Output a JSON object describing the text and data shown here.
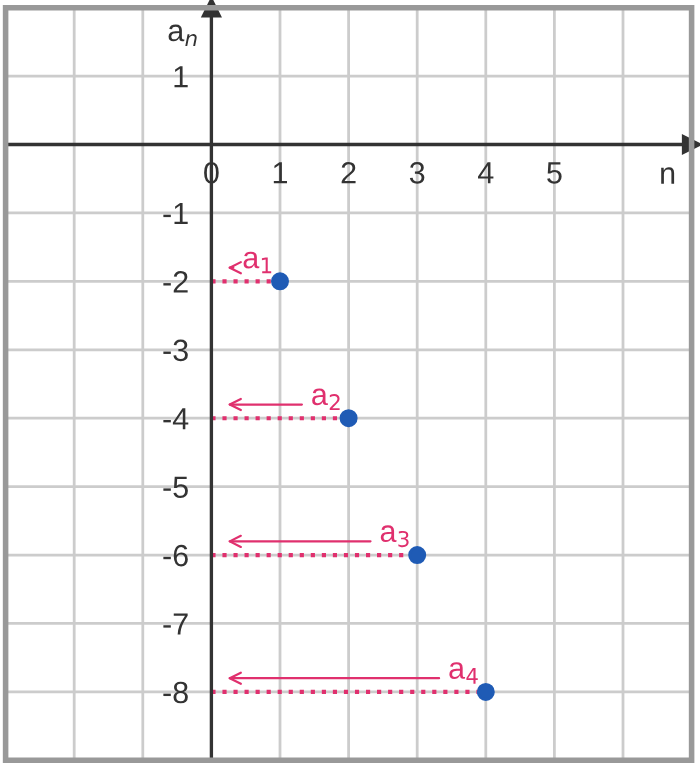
{
  "chart_data": {
    "type": "scatter",
    "xlabel": "n",
    "ylabel": "a$_{n}$",
    "x": [
      1,
      2,
      3,
      4
    ],
    "series": [
      {
        "color": "#1f5bb5",
        "values": [
          -2,
          -4,
          -6,
          -8
        ]
      }
    ],
    "marker": "circle",
    "xlim": [
      -3,
      7
    ],
    "ylim": [
      -9,
      2
    ],
    "xticks": [
      {
        "value": -3,
        "label": null
      },
      {
        "value": -2,
        "label": null
      },
      {
        "value": -1,
        "label": null
      },
      0,
      1,
      2,
      3,
      4,
      5,
      {
        "value": 6,
        "label": null
      },
      {
        "value": 7,
        "label": null
      }
    ],
    "yticks": [
      {
        "value": -9,
        "label": null
      },
      -8,
      -7,
      -6,
      -5,
      -4,
      -3,
      -2,
      -1,
      {
        "value": 0,
        "label": null
      },
      1,
      {
        "value": 2,
        "label": null
      }
    ],
    "grid": true,
    "annotations": [
      {
        "text": "a$_{1}$",
        "x": 1,
        "y": -2
      },
      {
        "text": "a$_{2}$",
        "x": 2,
        "y": -4
      },
      {
        "text": "a$_{3}$",
        "x": 3,
        "y": -6
      },
      {
        "text": "a$_{4}$",
        "x": 4,
        "y": -8
      }
    ]
  }
}
